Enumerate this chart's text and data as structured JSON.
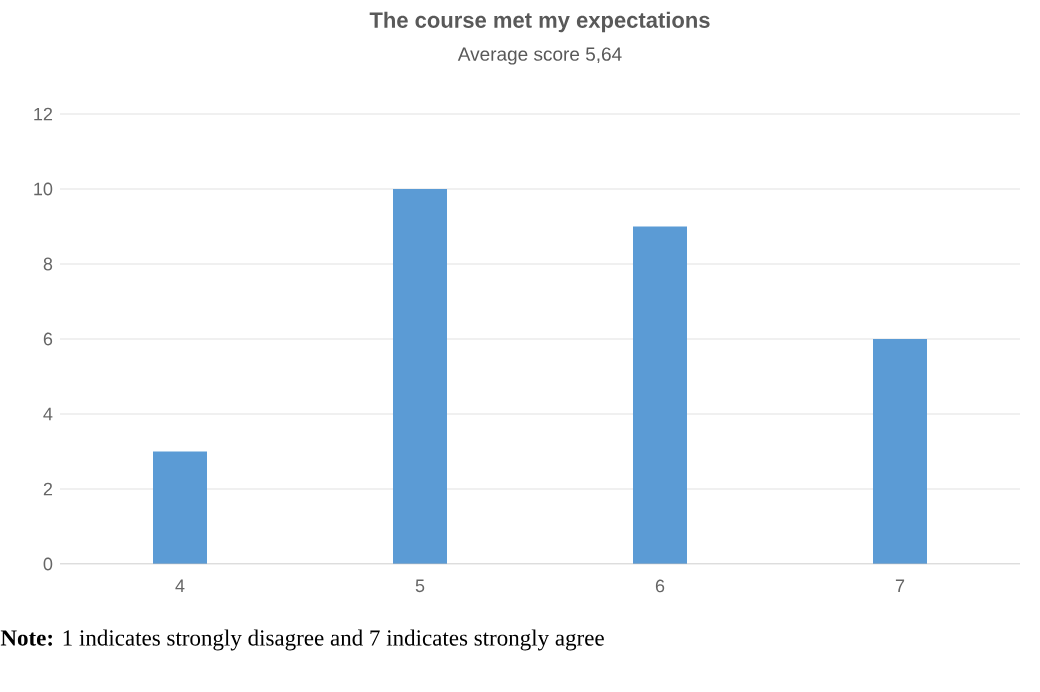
{
  "chart_data": {
    "type": "bar",
    "title": "The course met my expectations",
    "subtitle": "Average score 5,64",
    "categories": [
      "4",
      "5",
      "6",
      "7"
    ],
    "values": [
      3,
      10,
      9,
      6
    ],
    "color": "#5b9bd5",
    "ylim": [
      0,
      12
    ],
    "yticks": [
      0,
      2,
      4,
      6,
      8,
      10,
      12
    ],
    "grid": "y",
    "annotations": [
      "**Note:** 1 indicates strongly disagree and 7 indicates strongly agree"
    ]
  }
}
